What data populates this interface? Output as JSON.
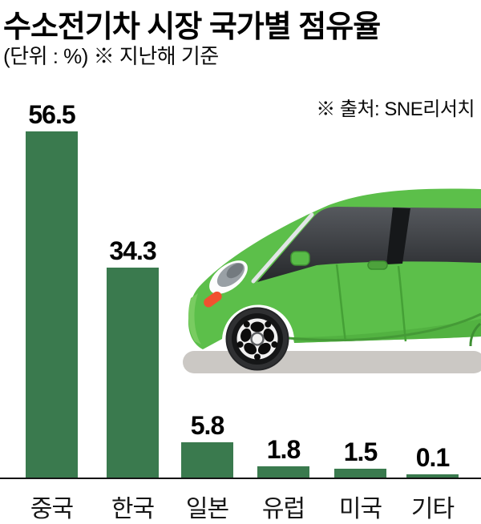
{
  "header": {
    "title": "수소전기차 시장 국가별 점유율",
    "subtitle": "(단위 : %) ※ 지난해 기준",
    "source": "※ 출처: SNE리서치"
  },
  "chart_data": {
    "type": "bar",
    "title": "수소전기차 시장 국가별 점유율",
    "unit": "%",
    "categories": [
      "중국",
      "한국",
      "일본",
      "유럽",
      "미국",
      "기타"
    ],
    "values": [
      56.5,
      34.3,
      5.8,
      1.8,
      1.5,
      0.1
    ],
    "value_labels": [
      "56.5",
      "34.3",
      "5.8",
      "1.8",
      "1.5",
      "0.1"
    ],
    "xlabel": "",
    "ylabel": "",
    "ylim": [
      0,
      60
    ],
    "grid": false,
    "legend": false,
    "bar_color": "#3a7a4e",
    "axis_color": "#141414"
  },
  "illustration": {
    "name": "green-hatchback-car-side-view",
    "body_color": "#5cbf4a",
    "body_shade_color": "#4fae3f",
    "glass_color": "#45484d",
    "road_color": "#cbc8c4",
    "indicator_color": "#f1512f",
    "tire_color": "#2f3032",
    "rim_color": "#f1f1f1"
  }
}
